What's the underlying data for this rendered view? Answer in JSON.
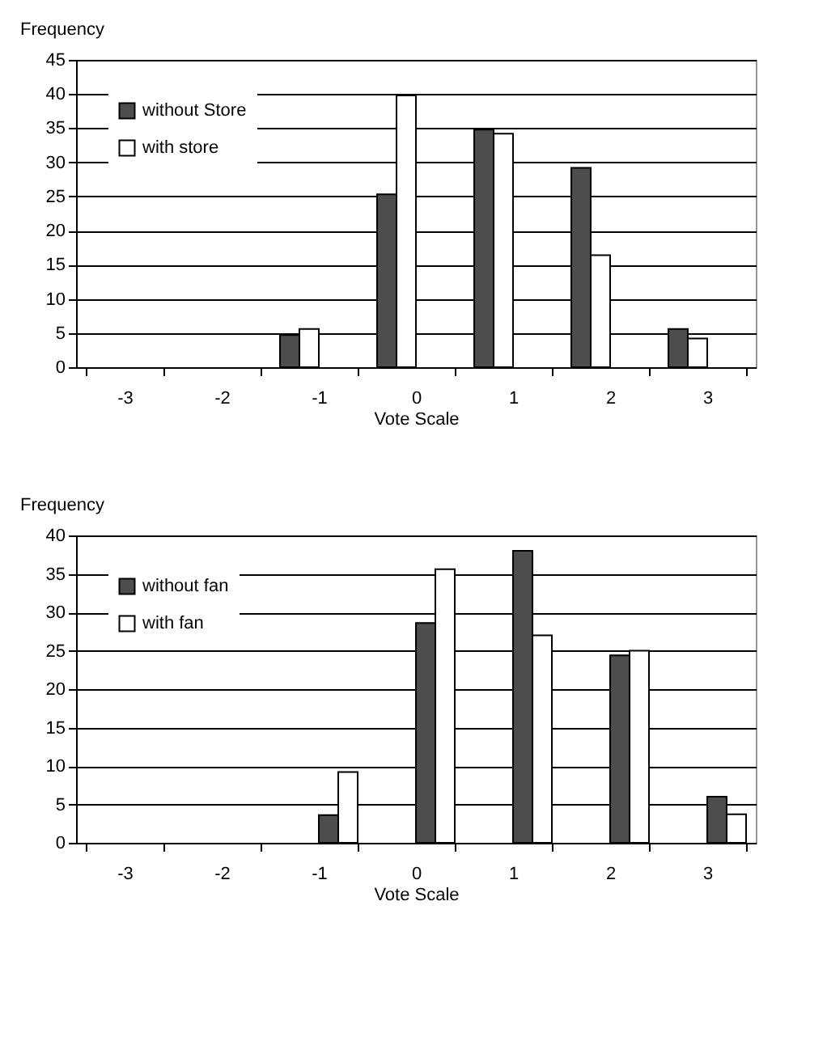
{
  "chart_data": [
    {
      "type": "bar",
      "xlabel": "Vote Scale",
      "ylabel": "Frequency",
      "categories": [
        "-3",
        "-2",
        "-1",
        "0",
        "1",
        "2",
        "3"
      ],
      "series": [
        {
          "name": "without Store",
          "color": "#4d4d4d",
          "values": [
            null,
            null,
            4.7,
            25.3,
            34.8,
            29.2,
            5.6
          ]
        },
        {
          "name": "with store",
          "color": "#ffffff",
          "values": [
            null,
            null,
            5.6,
            39.8,
            34.2,
            16.4,
            4.2
          ]
        }
      ],
      "ylim": [
        0,
        45
      ],
      "yticks": [
        0,
        5,
        10,
        15,
        20,
        25,
        30,
        35,
        40,
        45
      ],
      "grid": "y",
      "legend": "top left"
    },
    {
      "type": "bar",
      "xlabel": "Vote Scale",
      "ylabel": "Frequency",
      "categories": [
        "-3",
        "-2",
        "-1",
        "0",
        "1",
        "2",
        "3"
      ],
      "series": [
        {
          "name": "without fan",
          "color": "#4d4d4d",
          "values": [
            null,
            null,
            3.6,
            28.6,
            38,
            24.4,
            6
          ]
        },
        {
          "name": "with fan",
          "color": "#ffffff",
          "values": [
            null,
            null,
            9.2,
            35.6,
            27,
            25,
            3.7
          ]
        }
      ],
      "ylim": [
        0,
        40
      ],
      "yticks": [
        0,
        5,
        10,
        15,
        20,
        25,
        30,
        35,
        40
      ],
      "grid": "y",
      "legend": "top left"
    }
  ]
}
